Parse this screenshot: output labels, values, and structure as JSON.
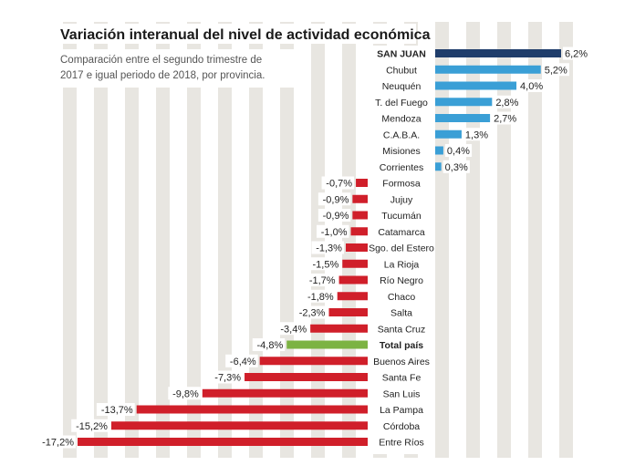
{
  "chart_data": {
    "type": "bar",
    "orientation": "horizontal",
    "title": "Variación interanual del nivel de actividad económica",
    "subtitle_lines": [
      "Comparación entre el segundo trimestre de",
      "2017 e igual periodo de 2018, por provincia."
    ],
    "xlim": [
      -17.2,
      6.2
    ],
    "grid": "vertical-stripes",
    "categories": [
      "SAN JUAN",
      "Chubut",
      "Neuquén",
      "T. del Fuego",
      "Mendoza",
      "C.A.B.A.",
      "Misiones",
      "Corrientes",
      "Formosa",
      "Jujuy",
      "Tucumán",
      "Catamarca",
      "Sgo. del Estero",
      "La Rioja",
      "Río Negro",
      "Chaco",
      "Salta",
      "Santa Cruz",
      "Total país",
      "Buenos Aires",
      "Santa Fe",
      "San Luis",
      "La Pampa",
      "Córdoba",
      "Entre Ríos"
    ],
    "values": [
      6.2,
      5.2,
      4.0,
      2.8,
      2.7,
      1.3,
      0.4,
      0.3,
      -0.7,
      -0.9,
      -0.9,
      -1.0,
      -1.3,
      -1.5,
      -1.7,
      -1.8,
      -2.3,
      -3.4,
      -4.8,
      -6.4,
      -7.3,
      -9.8,
      -13.7,
      -15.2,
      -17.2
    ],
    "labels": [
      "6,2%",
      "5,2%",
      "4,0%",
      "2,8%",
      "2,7%",
      "1,3%",
      "0,4%",
      "0,3%",
      "-0,7%",
      "-0,9%",
      "-0,9%",
      "-1,0%",
      "-1,3%",
      "-1,5%",
      "-1,7%",
      "-1,8%",
      "-2,3%",
      "-3,4%",
      "-4,8%",
      "-6,4%",
      "-7,3%",
      "-9,8%",
      "-13,7%",
      "-15,2%",
      "-17,2%"
    ],
    "highlight": [
      "SAN JUAN",
      "Total país"
    ],
    "colors": {
      "positive": "#3a9fd6",
      "highlight_positive": "#1f3d6b",
      "negative": "#d01f2a",
      "total": "#7cb342",
      "stripe": "#e8e6e1"
    }
  }
}
